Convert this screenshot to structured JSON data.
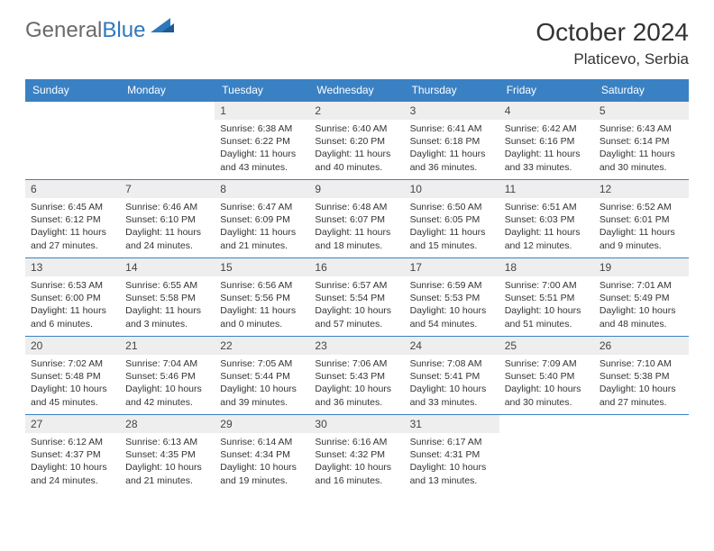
{
  "logo": {
    "general": "General",
    "blue": "Blue"
  },
  "title": "October 2024",
  "location": "Platicevo, Serbia",
  "colors": {
    "header_bg": "#3a81c4",
    "header_text": "#ffffff",
    "daynum_bg": "#eeeeee",
    "border": "#3a81c4",
    "logo_gray": "#6a6a6a",
    "logo_blue": "#2f78bd"
  },
  "weekdays": [
    "Sunday",
    "Monday",
    "Tuesday",
    "Wednesday",
    "Thursday",
    "Friday",
    "Saturday"
  ],
  "weeks": [
    [
      null,
      null,
      {
        "n": "1",
        "sr": "6:38 AM",
        "ss": "6:22 PM",
        "dl": "11 hours and 43 minutes."
      },
      {
        "n": "2",
        "sr": "6:40 AM",
        "ss": "6:20 PM",
        "dl": "11 hours and 40 minutes."
      },
      {
        "n": "3",
        "sr": "6:41 AM",
        "ss": "6:18 PM",
        "dl": "11 hours and 36 minutes."
      },
      {
        "n": "4",
        "sr": "6:42 AM",
        "ss": "6:16 PM",
        "dl": "11 hours and 33 minutes."
      },
      {
        "n": "5",
        "sr": "6:43 AM",
        "ss": "6:14 PM",
        "dl": "11 hours and 30 minutes."
      }
    ],
    [
      {
        "n": "6",
        "sr": "6:45 AM",
        "ss": "6:12 PM",
        "dl": "11 hours and 27 minutes."
      },
      {
        "n": "7",
        "sr": "6:46 AM",
        "ss": "6:10 PM",
        "dl": "11 hours and 24 minutes."
      },
      {
        "n": "8",
        "sr": "6:47 AM",
        "ss": "6:09 PM",
        "dl": "11 hours and 21 minutes."
      },
      {
        "n": "9",
        "sr": "6:48 AM",
        "ss": "6:07 PM",
        "dl": "11 hours and 18 minutes."
      },
      {
        "n": "10",
        "sr": "6:50 AM",
        "ss": "6:05 PM",
        "dl": "11 hours and 15 minutes."
      },
      {
        "n": "11",
        "sr": "6:51 AM",
        "ss": "6:03 PM",
        "dl": "11 hours and 12 minutes."
      },
      {
        "n": "12",
        "sr": "6:52 AM",
        "ss": "6:01 PM",
        "dl": "11 hours and 9 minutes."
      }
    ],
    [
      {
        "n": "13",
        "sr": "6:53 AM",
        "ss": "6:00 PM",
        "dl": "11 hours and 6 minutes."
      },
      {
        "n": "14",
        "sr": "6:55 AM",
        "ss": "5:58 PM",
        "dl": "11 hours and 3 minutes."
      },
      {
        "n": "15",
        "sr": "6:56 AM",
        "ss": "5:56 PM",
        "dl": "11 hours and 0 minutes."
      },
      {
        "n": "16",
        "sr": "6:57 AM",
        "ss": "5:54 PM",
        "dl": "10 hours and 57 minutes."
      },
      {
        "n": "17",
        "sr": "6:59 AM",
        "ss": "5:53 PM",
        "dl": "10 hours and 54 minutes."
      },
      {
        "n": "18",
        "sr": "7:00 AM",
        "ss": "5:51 PM",
        "dl": "10 hours and 51 minutes."
      },
      {
        "n": "19",
        "sr": "7:01 AM",
        "ss": "5:49 PM",
        "dl": "10 hours and 48 minutes."
      }
    ],
    [
      {
        "n": "20",
        "sr": "7:02 AM",
        "ss": "5:48 PM",
        "dl": "10 hours and 45 minutes."
      },
      {
        "n": "21",
        "sr": "7:04 AM",
        "ss": "5:46 PM",
        "dl": "10 hours and 42 minutes."
      },
      {
        "n": "22",
        "sr": "7:05 AM",
        "ss": "5:44 PM",
        "dl": "10 hours and 39 minutes."
      },
      {
        "n": "23",
        "sr": "7:06 AM",
        "ss": "5:43 PM",
        "dl": "10 hours and 36 minutes."
      },
      {
        "n": "24",
        "sr": "7:08 AM",
        "ss": "5:41 PM",
        "dl": "10 hours and 33 minutes."
      },
      {
        "n": "25",
        "sr": "7:09 AM",
        "ss": "5:40 PM",
        "dl": "10 hours and 30 minutes."
      },
      {
        "n": "26",
        "sr": "7:10 AM",
        "ss": "5:38 PM",
        "dl": "10 hours and 27 minutes."
      }
    ],
    [
      {
        "n": "27",
        "sr": "6:12 AM",
        "ss": "4:37 PM",
        "dl": "10 hours and 24 minutes."
      },
      {
        "n": "28",
        "sr": "6:13 AM",
        "ss": "4:35 PM",
        "dl": "10 hours and 21 minutes."
      },
      {
        "n": "29",
        "sr": "6:14 AM",
        "ss": "4:34 PM",
        "dl": "10 hours and 19 minutes."
      },
      {
        "n": "30",
        "sr": "6:16 AM",
        "ss": "4:32 PM",
        "dl": "10 hours and 16 minutes."
      },
      {
        "n": "31",
        "sr": "6:17 AM",
        "ss": "4:31 PM",
        "dl": "10 hours and 13 minutes."
      },
      null,
      null
    ]
  ],
  "labels": {
    "sunrise": "Sunrise:",
    "sunset": "Sunset:",
    "daylight": "Daylight:"
  }
}
